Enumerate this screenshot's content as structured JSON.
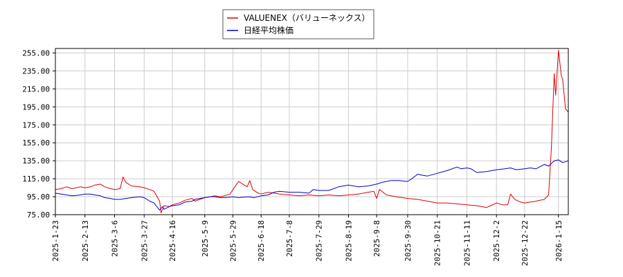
{
  "chart_data": {
    "type": "line",
    "title": "",
    "xlabel": "",
    "ylabel": "",
    "ylim": [
      75,
      260
    ],
    "yticks": [
      "75.00",
      "95.00",
      "115.00",
      "135.00",
      "155.00",
      "175.00",
      "195.00",
      "215.00",
      "235.00",
      "255.00"
    ],
    "xlim": [
      "2025-01-23",
      "2026-01-22"
    ],
    "xticks": [
      "2025-1-23",
      "2025-2-13",
      "2025-3-6",
      "2025-3-27",
      "2025-4-16",
      "2025-5-9",
      "2025-5-29",
      "2025-6-18",
      "2025-7-8",
      "2025-7-29",
      "2025-8-19",
      "2025-9-8",
      "2025-9-30",
      "2025-10-21",
      "2025-11-11",
      "2025-12-2",
      "2025-12-22",
      "2026-1-15"
    ],
    "grid": true,
    "legend_position": "top-center",
    "series": [
      {
        "name": "VALUENEX（バリューネックス）",
        "color": "#dd0000",
        "points": [
          [
            "2025-01-23",
            103
          ],
          [
            "2025-01-27",
            104
          ],
          [
            "2025-01-31",
            106
          ],
          [
            "2025-02-04",
            104
          ],
          [
            "2025-02-10",
            106
          ],
          [
            "2025-02-13",
            105
          ],
          [
            "2025-02-17",
            106
          ],
          [
            "2025-02-20",
            108
          ],
          [
            "2025-02-24",
            109
          ],
          [
            "2025-02-27",
            106
          ],
          [
            "2025-03-03",
            104
          ],
          [
            "2025-03-06",
            103
          ],
          [
            "2025-03-10",
            104
          ],
          [
            "2025-03-12",
            117
          ],
          [
            "2025-03-14",
            111
          ],
          [
            "2025-03-18",
            107
          ],
          [
            "2025-03-24",
            106
          ],
          [
            "2025-03-27",
            105
          ],
          [
            "2025-03-31",
            103
          ],
          [
            "2025-04-03",
            101
          ],
          [
            "2025-04-07",
            90
          ],
          [
            "2025-04-08",
            77
          ],
          [
            "2025-04-10",
            85
          ],
          [
            "2025-04-14",
            84
          ],
          [
            "2025-04-16",
            86
          ],
          [
            "2025-04-21",
            88
          ],
          [
            "2025-04-25",
            91
          ],
          [
            "2025-04-30",
            93
          ],
          [
            "2025-05-02",
            90
          ],
          [
            "2025-05-09",
            94
          ],
          [
            "2025-05-13",
            95
          ],
          [
            "2025-05-16",
            96
          ],
          [
            "2025-05-20",
            95
          ],
          [
            "2025-05-23",
            96
          ],
          [
            "2025-05-27",
            98
          ],
          [
            "2025-05-29",
            103
          ],
          [
            "2025-06-02",
            112
          ],
          [
            "2025-06-05",
            109
          ],
          [
            "2025-06-08",
            106
          ],
          [
            "2025-06-10",
            113
          ],
          [
            "2025-06-12",
            103
          ],
          [
            "2025-06-16",
            99
          ],
          [
            "2025-06-18",
            98
          ],
          [
            "2025-06-23",
            100
          ],
          [
            "2025-06-27",
            99
          ],
          [
            "2025-07-01",
            98
          ],
          [
            "2025-07-08",
            97
          ],
          [
            "2025-07-15",
            96
          ],
          [
            "2025-07-22",
            97
          ],
          [
            "2025-07-29",
            96
          ],
          [
            "2025-08-05",
            97
          ],
          [
            "2025-08-12",
            96
          ],
          [
            "2025-08-19",
            97
          ],
          [
            "2025-08-26",
            98
          ],
          [
            "2025-09-02",
            100
          ],
          [
            "2025-09-06",
            101
          ],
          [
            "2025-09-08",
            93
          ],
          [
            "2025-09-10",
            103
          ],
          [
            "2025-09-15",
            97
          ],
          [
            "2025-09-22",
            95
          ],
          [
            "2025-09-30",
            93
          ],
          [
            "2025-10-07",
            92
          ],
          [
            "2025-10-14",
            90
          ],
          [
            "2025-10-21",
            88
          ],
          [
            "2025-10-28",
            88
          ],
          [
            "2025-11-04",
            87
          ],
          [
            "2025-11-11",
            86
          ],
          [
            "2025-11-18",
            85
          ],
          [
            "2025-11-25",
            83
          ],
          [
            "2025-11-28",
            85
          ],
          [
            "2025-12-02",
            88
          ],
          [
            "2025-12-06",
            86
          ],
          [
            "2025-12-10",
            86
          ],
          [
            "2025-12-12",
            98
          ],
          [
            "2025-12-15",
            92
          ],
          [
            "2025-12-19",
            89
          ],
          [
            "2025-12-22",
            88
          ],
          [
            "2025-12-26",
            89
          ],
          [
            "2025-12-30",
            90
          ],
          [
            "2026-01-05",
            92
          ],
          [
            "2026-01-08",
            97
          ],
          [
            "2026-01-10",
            150
          ],
          [
            "2026-01-12",
            232
          ],
          [
            "2026-01-13",
            208
          ],
          [
            "2026-01-15",
            258
          ],
          [
            "2026-01-17",
            230
          ],
          [
            "2026-01-18",
            225
          ],
          [
            "2026-01-20",
            193
          ],
          [
            "2026-01-22",
            189
          ]
        ]
      },
      {
        "name": "日経平均株価",
        "color": "#0000cc",
        "points": [
          [
            "2025-01-23",
            99
          ],
          [
            "2025-01-27",
            98
          ],
          [
            "2025-01-31",
            97
          ],
          [
            "2025-02-04",
            96
          ],
          [
            "2025-02-10",
            97
          ],
          [
            "2025-02-13",
            98
          ],
          [
            "2025-02-17",
            98
          ],
          [
            "2025-02-20",
            97
          ],
          [
            "2025-02-24",
            96
          ],
          [
            "2025-02-27",
            94
          ],
          [
            "2025-03-03",
            93
          ],
          [
            "2025-03-06",
            92
          ],
          [
            "2025-03-10",
            92
          ],
          [
            "2025-03-14",
            93
          ],
          [
            "2025-03-18",
            94
          ],
          [
            "2025-03-24",
            95
          ],
          [
            "2025-03-27",
            94
          ],
          [
            "2025-03-31",
            90
          ],
          [
            "2025-04-03",
            88
          ],
          [
            "2025-04-07",
            80
          ],
          [
            "2025-04-09",
            84
          ],
          [
            "2025-04-10",
            81
          ],
          [
            "2025-04-14",
            84
          ],
          [
            "2025-04-16",
            85
          ],
          [
            "2025-04-21",
            86
          ],
          [
            "2025-04-25",
            89
          ],
          [
            "2025-04-30",
            90
          ],
          [
            "2025-05-02",
            92
          ],
          [
            "2025-05-09",
            94
          ],
          [
            "2025-05-13",
            95
          ],
          [
            "2025-05-16",
            95
          ],
          [
            "2025-05-20",
            94
          ],
          [
            "2025-05-23",
            94
          ],
          [
            "2025-05-29",
            95
          ],
          [
            "2025-06-02",
            94
          ],
          [
            "2025-06-09",
            95
          ],
          [
            "2025-06-13",
            94
          ],
          [
            "2025-06-18",
            96
          ],
          [
            "2025-06-23",
            97
          ],
          [
            "2025-06-27",
            100
          ],
          [
            "2025-07-01",
            101
          ],
          [
            "2025-07-08",
            100
          ],
          [
            "2025-07-15",
            100
          ],
          [
            "2025-07-22",
            99
          ],
          [
            "2025-07-25",
            103
          ],
          [
            "2025-07-29",
            102
          ],
          [
            "2025-08-05",
            102
          ],
          [
            "2025-08-12",
            106
          ],
          [
            "2025-08-19",
            108
          ],
          [
            "2025-08-26",
            106
          ],
          [
            "2025-09-02",
            107
          ],
          [
            "2025-09-08",
            109
          ],
          [
            "2025-09-12",
            111
          ],
          [
            "2025-09-18",
            113
          ],
          [
            "2025-09-24",
            113
          ],
          [
            "2025-09-30",
            112
          ],
          [
            "2025-10-03",
            115
          ],
          [
            "2025-10-07",
            120
          ],
          [
            "2025-10-10",
            119
          ],
          [
            "2025-10-14",
            118
          ],
          [
            "2025-10-21",
            121
          ],
          [
            "2025-10-28",
            124
          ],
          [
            "2025-11-04",
            128
          ],
          [
            "2025-11-07",
            126
          ],
          [
            "2025-11-11",
            127
          ],
          [
            "2025-11-14",
            126
          ],
          [
            "2025-11-18",
            122
          ],
          [
            "2025-11-25",
            123
          ],
          [
            "2025-12-02",
            125
          ],
          [
            "2025-12-08",
            126
          ],
          [
            "2025-12-12",
            127
          ],
          [
            "2025-12-16",
            125
          ],
          [
            "2025-12-22",
            126
          ],
          [
            "2025-12-26",
            127
          ],
          [
            "2025-12-30",
            126
          ],
          [
            "2026-01-05",
            131
          ],
          [
            "2026-01-08",
            129
          ],
          [
            "2026-01-12",
            135
          ],
          [
            "2026-01-15",
            136
          ],
          [
            "2026-01-18",
            133
          ],
          [
            "2026-01-22",
            135
          ]
        ]
      }
    ]
  }
}
